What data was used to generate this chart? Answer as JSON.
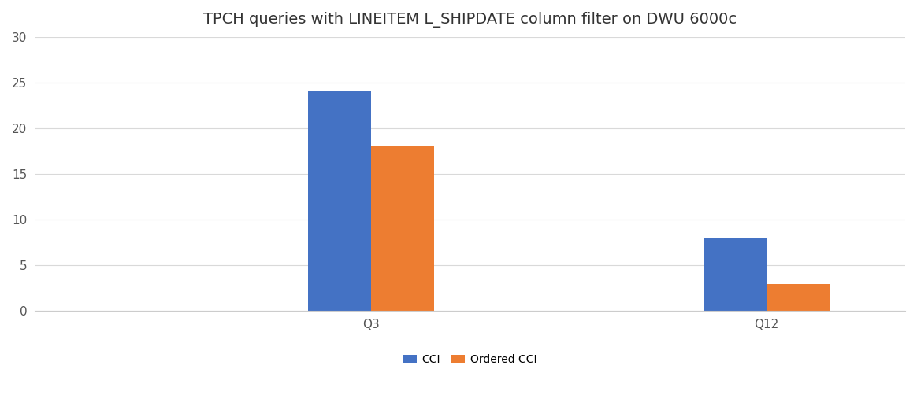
{
  "title": "TPCH queries with LINEITEM L_SHIPDATE column filter on DWU 6000c",
  "categories": [
    "Q3",
    "Q12"
  ],
  "series": [
    {
      "label": "CCI",
      "values": [
        24,
        8
      ],
      "color": "#4472C4"
    },
    {
      "label": "Ordered CCI",
      "values": [
        18,
        3
      ],
      "color": "#ED7D31"
    }
  ],
  "ylim": [
    0,
    30
  ],
  "yticks": [
    0,
    5,
    10,
    15,
    20,
    25,
    30
  ],
  "bar_width": 0.32,
  "background_color": "#ffffff",
  "grid_color": "#d9d9d9",
  "title_fontsize": 14,
  "tick_fontsize": 11,
  "legend_fontsize": 10,
  "xlim_left": -0.7,
  "xlim_right": 3.7
}
